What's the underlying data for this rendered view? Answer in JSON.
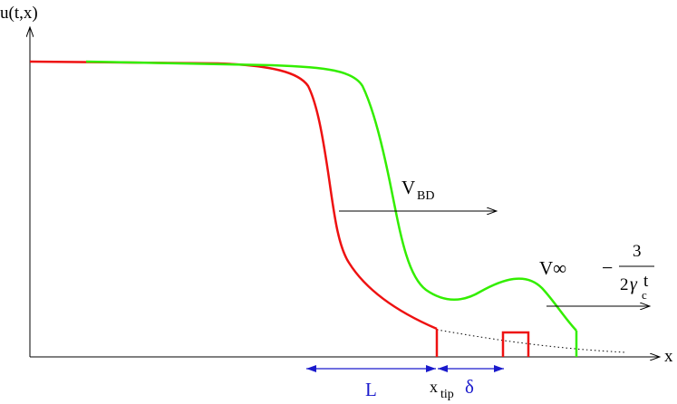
{
  "axes": {
    "y_label": "u(t,x)",
    "x_label": "x"
  },
  "labels": {
    "v_bd_main": "V",
    "v_bd_sub": "BD",
    "v_inf": "V∞",
    "minus": "−",
    "frac_num": "3",
    "frac_den_2": "2",
    "frac_den_gamma": "γ",
    "frac_den_t": "t",
    "frac_den_sub": "c",
    "length_l": "L",
    "x_tip_main": "x",
    "x_tip_sub": "tip",
    "delta": "δ"
  },
  "colors": {
    "red_curve": "#ee1111",
    "green_curve": "#33ee00",
    "measure_arrows": "#1a1acc",
    "axis": "#000000"
  }
}
